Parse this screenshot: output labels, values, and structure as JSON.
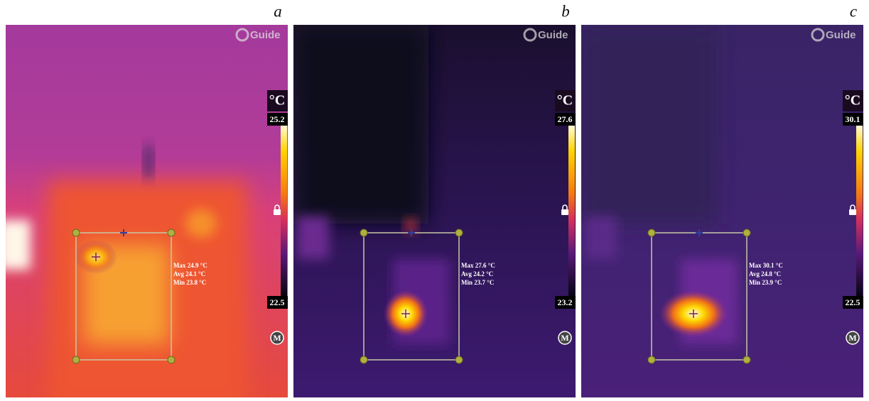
{
  "panels": [
    {
      "label": "a",
      "brand": "Guide",
      "unit": "°C",
      "scale_max": "25.2",
      "scale_min": "22.5",
      "mode": "M",
      "stats": [
        "Max 24.9 °C",
        "Avg 24.1 °C",
        "Min 23.8 °C"
      ]
    },
    {
      "label": "b",
      "brand": "Guide",
      "unit": "°C",
      "scale_max": "27.6",
      "scale_min": "23.2",
      "mode": "M",
      "stats": [
        "Max 27.6 °C",
        "Avg 24.2 °C",
        "Min 23.7 °C"
      ]
    },
    {
      "label": "c",
      "brand": "Guide",
      "unit": "°C",
      "scale_max": "30.1",
      "scale_min": "22.5",
      "mode": "M",
      "stats": [
        "Max 30.1 °C",
        "Avg 24.8 °C",
        "Min 23.9 °C"
      ]
    }
  ]
}
